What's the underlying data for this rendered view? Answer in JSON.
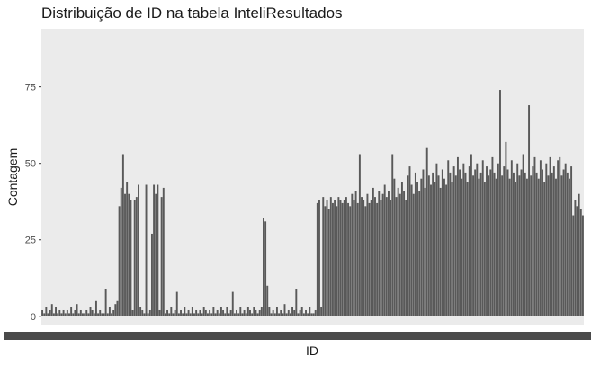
{
  "chart_data": {
    "type": "bar",
    "title": "Distribuição de ID na tabela InteliResultados",
    "xlabel": "ID",
    "ylabel": "Contagem",
    "ylim": [
      -3,
      94
    ],
    "y_ticks": [
      0,
      25,
      50,
      75
    ],
    "y_tick_labels": [
      "0",
      "25",
      "50",
      "75"
    ],
    "x_tick_labels_note": "x tick labels are overlapping and illegible",
    "grid": false,
    "legend": "none",
    "colors": {
      "panel": "#ebebeb",
      "bar": "#595959",
      "tick": "#4d4d4d",
      "background": "#ffffff"
    },
    "categories_count": 300,
    "values": [
      2,
      1,
      3,
      1,
      2,
      4,
      1,
      3,
      1,
      2,
      1,
      2,
      1,
      2,
      1,
      3,
      1,
      2,
      4,
      1,
      2,
      1,
      1,
      2,
      1,
      3,
      2,
      1,
      5,
      1,
      2,
      1,
      1,
      9,
      1,
      3,
      1,
      2,
      4,
      5,
      36,
      42,
      53,
      40,
      44,
      40,
      38,
      2,
      38,
      39,
      43,
      3,
      2,
      1,
      43,
      1,
      2,
      27,
      43,
      40,
      43,
      2,
      39,
      42,
      1,
      2,
      1,
      3,
      1,
      2,
      8,
      1,
      2,
      1,
      3,
      1,
      2,
      1,
      3,
      1,
      2,
      1,
      2,
      1,
      3,
      2,
      1,
      2,
      1,
      3,
      1,
      2,
      1,
      3,
      2,
      1,
      3,
      1,
      2,
      8,
      1,
      2,
      1,
      3,
      1,
      2,
      1,
      3,
      2,
      1,
      3,
      2,
      1,
      2,
      3,
      32,
      31,
      10,
      3,
      1,
      2,
      1,
      3,
      1,
      2,
      1,
      4,
      1,
      2,
      1,
      3,
      2,
      9,
      1,
      2,
      3,
      1,
      2,
      1,
      3,
      1,
      1,
      2,
      37,
      38,
      3,
      39,
      36,
      38,
      35,
      39,
      37,
      38,
      36,
      39,
      38,
      37,
      38,
      39,
      37,
      36,
      40,
      38,
      41,
      37,
      53,
      39,
      38,
      36,
      40,
      37,
      38,
      42,
      39,
      37,
      41,
      38,
      40,
      43,
      39,
      41,
      38,
      53,
      45,
      39,
      42,
      40,
      44,
      41,
      38,
      46,
      49,
      43,
      40,
      47,
      44,
      41,
      45,
      48,
      42,
      55,
      46,
      43,
      47,
      44,
      50,
      46,
      42,
      48,
      45,
      43,
      51,
      47,
      44,
      49,
      46,
      52,
      48,
      45,
      50,
      47,
      44,
      49,
      53,
      46,
      48,
      50,
      45,
      47,
      51,
      44,
      49,
      46,
      48,
      52,
      47,
      45,
      50,
      74,
      46,
      49,
      57,
      48,
      45,
      51,
      47,
      44,
      50,
      46,
      48,
      53,
      47,
      45,
      69,
      46,
      49,
      52,
      47,
      45,
      51,
      48,
      44,
      50,
      46,
      52,
      47,
      49,
      45,
      51,
      52,
      46,
      48,
      50,
      47,
      45,
      49,
      33,
      38,
      36,
      40,
      35,
      33
    ]
  }
}
